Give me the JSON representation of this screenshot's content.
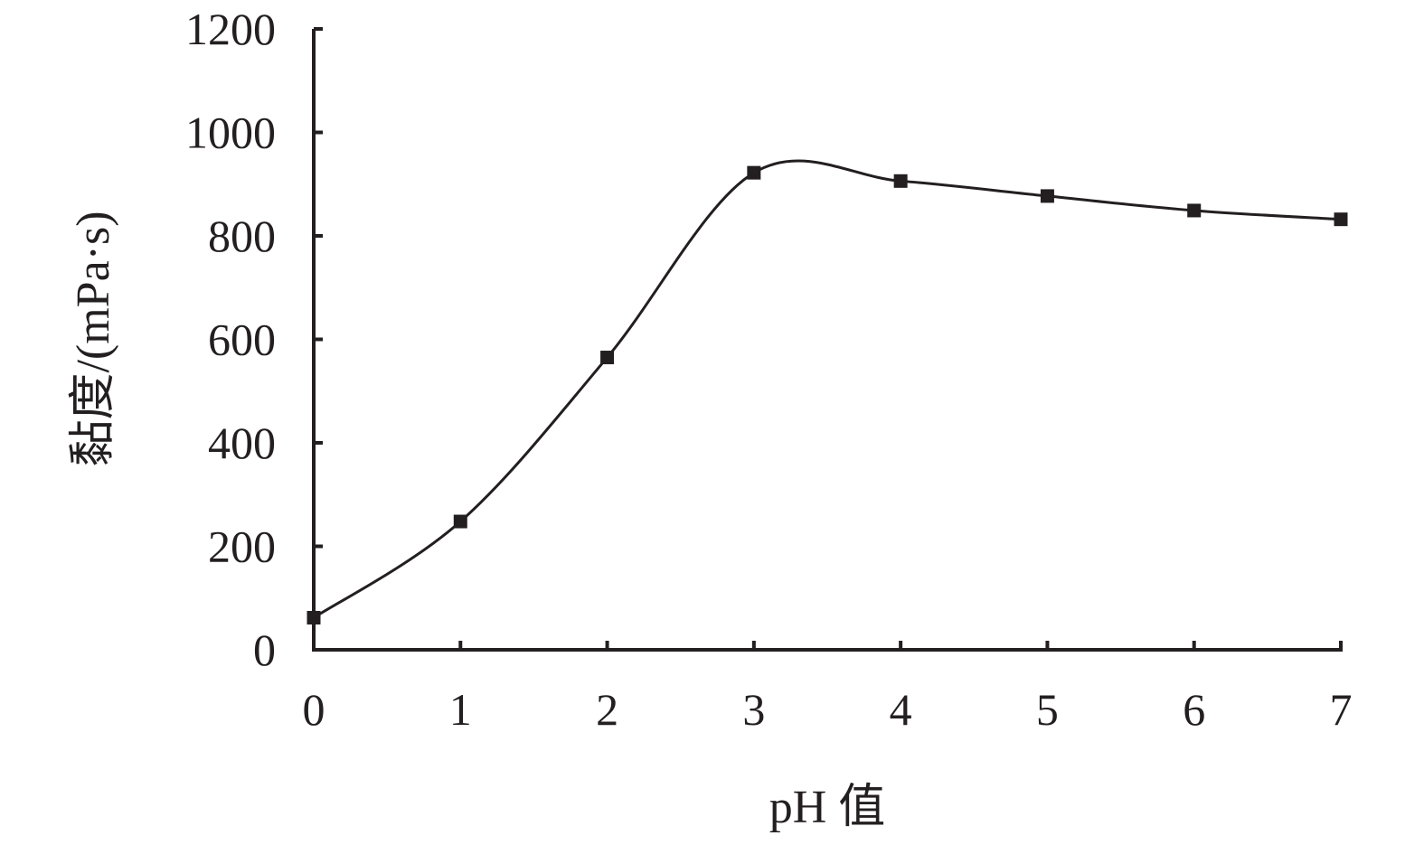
{
  "chart_data": {
    "type": "line",
    "title": "",
    "xlabel": "pH 值",
    "ylabel": "黏度/(mPa·s)",
    "xlim": [
      0,
      7
    ],
    "ylim": [
      0,
      1200
    ],
    "x_ticks": [
      "0",
      "1",
      "2",
      "3",
      "4",
      "5",
      "6",
      "7"
    ],
    "y_ticks": [
      "0",
      "200",
      "400",
      "600",
      "800",
      "1000",
      "1200"
    ],
    "grid": false,
    "legend": "none",
    "series": [
      {
        "x": [
          0,
          1,
          2,
          3,
          4,
          5,
          6,
          7
        ],
        "values": [
          62,
          248,
          565,
          922,
          906,
          877,
          849,
          832
        ],
        "marker": "square",
        "smooth": true,
        "color": "#231f20"
      }
    ]
  }
}
